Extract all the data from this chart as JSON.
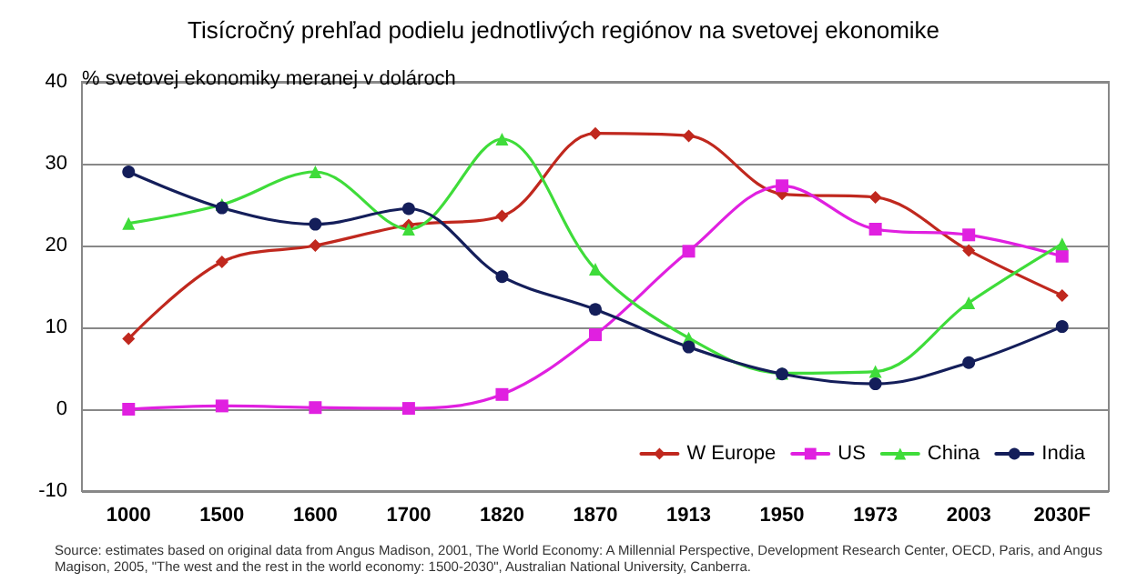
{
  "chart_data": {
    "type": "line",
    "title": "Tisícročný prehľad podielu jednotlivých regiónov na svetovej ekonomike",
    "ylabel": "% svetovej ekonomiky meranej v dolároch",
    "categories": [
      "1000",
      "1500",
      "1600",
      "1700",
      "1820",
      "1870",
      "1913",
      "1950",
      "1973",
      "2003",
      "2030F"
    ],
    "series": [
      {
        "name": "W Europe",
        "color": "#c0281e",
        "marker": "diamond",
        "values": [
          8.6,
          18,
          20,
          22.5,
          23.6,
          33.7,
          33.4,
          26.3,
          25.9,
          19.4,
          13.9
        ]
      },
      {
        "name": "US",
        "color": "#e020e0",
        "marker": "square",
        "values": [
          0,
          0.4,
          0.2,
          0.1,
          1.8,
          9.1,
          19.3,
          27.3,
          22,
          21.3,
          18.7
        ]
      },
      {
        "name": "China",
        "color": "#3fdc3a",
        "marker": "triangle",
        "values": [
          22.7,
          25,
          29,
          22,
          33,
          17.1,
          8.7,
          4.4,
          4.6,
          13,
          20.2
        ]
      },
      {
        "name": "India",
        "color": "#141e5a",
        "marker": "circle",
        "values": [
          29,
          24.6,
          22.6,
          24.5,
          16.2,
          12.2,
          7.6,
          4.3,
          3.1,
          5.7,
          10.1
        ]
      }
    ],
    "ylim": [
      -10,
      40
    ],
    "yticks": [
      -10,
      0,
      10,
      20,
      30,
      40
    ],
    "grid": "y",
    "legend": "bottom right",
    "line_style": "solid",
    "annotations": [
      "Source: estimates based on original data from Angus Madison, 2001, The World Economy: A Millennial Perspective, Development Research Center, OECD, Paris, and Angus Magison, 2005, \"The west and the rest in the world economy: 1500-2030\", Australian National University, Canberra."
    ]
  }
}
